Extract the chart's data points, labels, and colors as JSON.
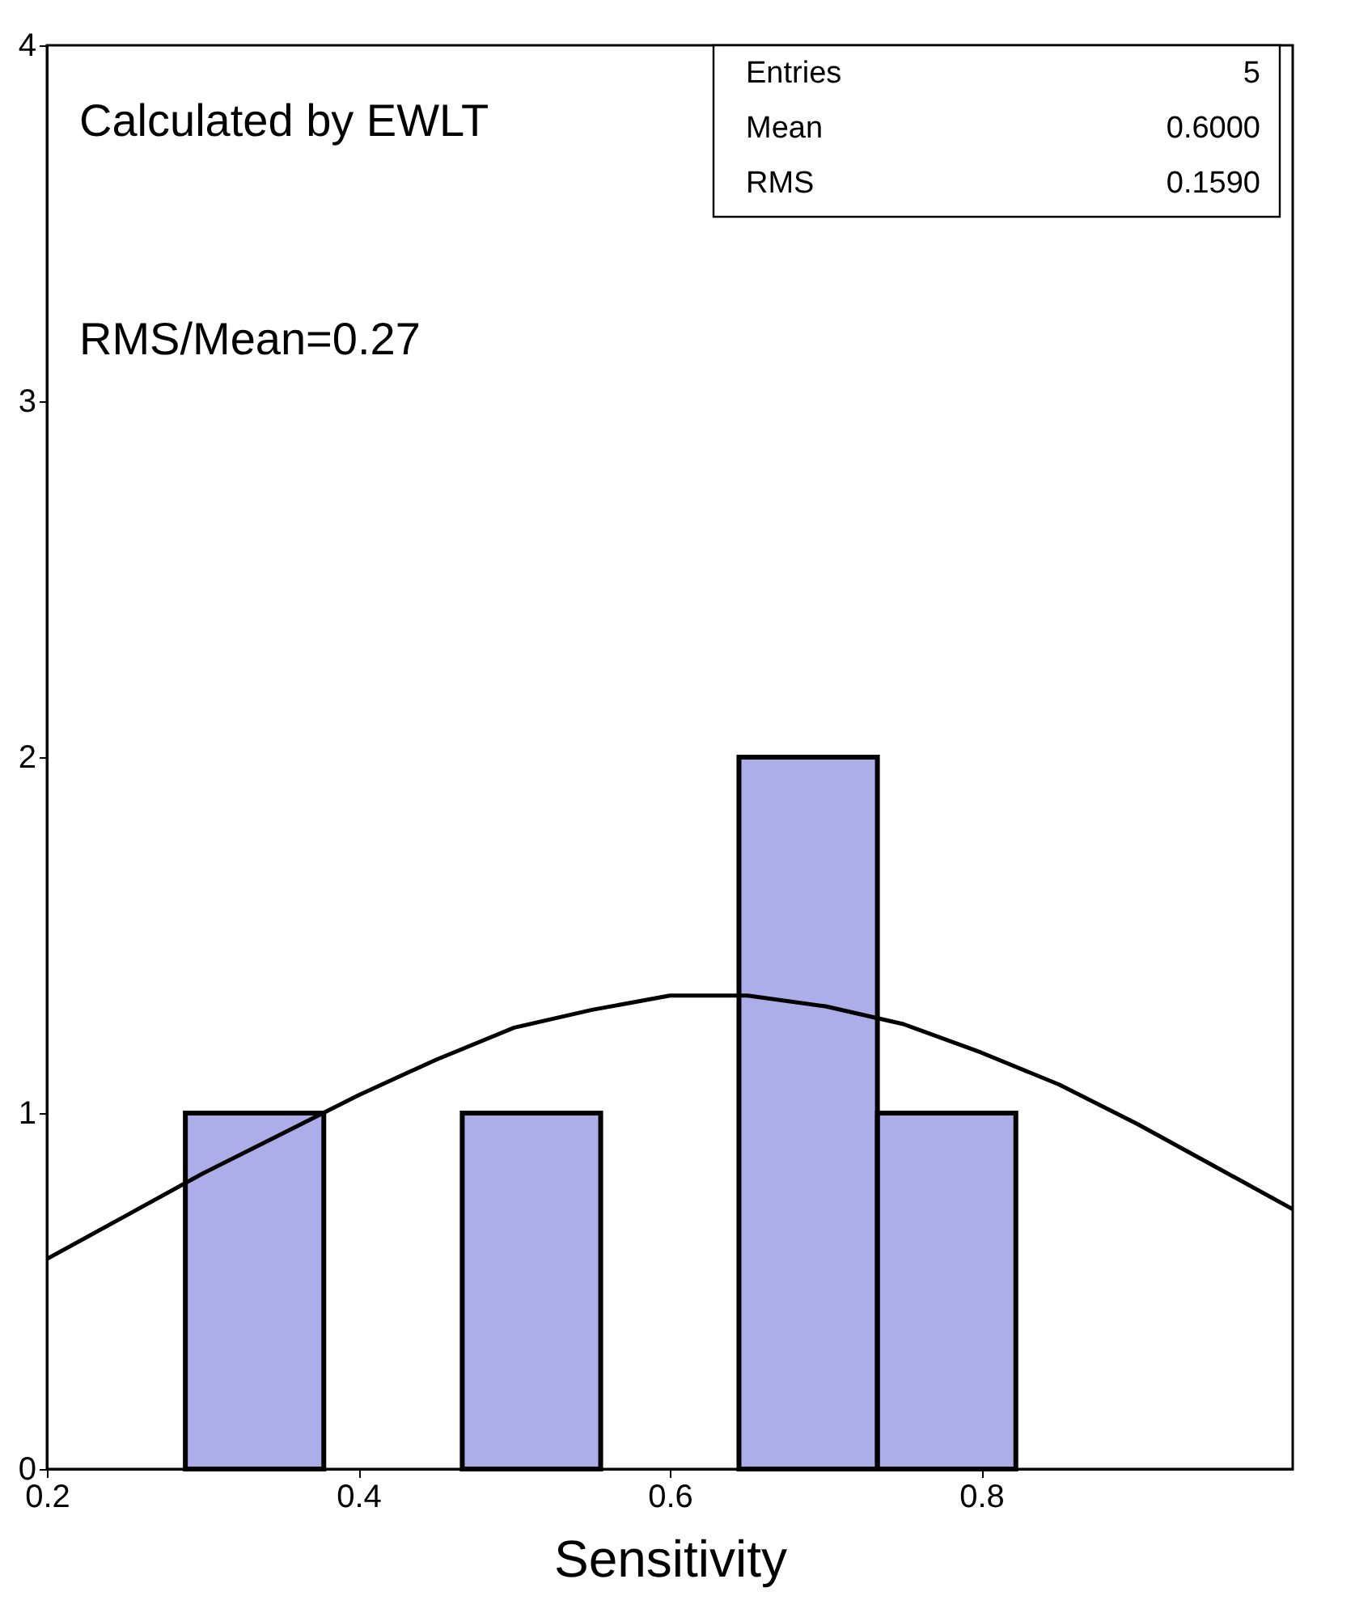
{
  "chart_data": {
    "type": "histogram",
    "xlabel": "Sensitivity",
    "bins": [
      0.2,
      0.2889,
      0.3778,
      0.4667,
      0.5556,
      0.6444,
      0.7333,
      0.8222,
      0.9111,
      1.0
    ],
    "values": [
      0,
      1,
      0,
      1,
      0,
      2,
      1,
      0,
      0
    ],
    "color": "#4a4ad0",
    "series": [
      {
        "type": "line",
        "color": "#000000",
        "x": [
          0.2,
          0.25,
          0.3,
          0.35,
          0.4,
          0.45,
          0.5,
          0.55,
          0.6,
          0.63,
          0.65,
          0.7,
          0.75,
          0.8,
          0.85,
          0.9,
          0.95,
          1.0
        ],
        "values": [
          0.59,
          0.71,
          0.83,
          0.94,
          1.05,
          1.15,
          1.24,
          1.29,
          1.33,
          1.33,
          1.33,
          1.3,
          1.25,
          1.17,
          1.08,
          0.97,
          0.85,
          0.73
        ]
      }
    ],
    "xlim": [
      0.2,
      1.0
    ],
    "xticks": [
      0.2,
      0.4,
      0.6,
      0.8
    ],
    "ylim": [
      0,
      4
    ],
    "yticks": [
      0,
      1,
      2,
      3,
      4
    ],
    "grid": false,
    "annotations": [
      "Calculated by EWLT",
      "RMS/Mean=0.27",
      "Entries",
      "5",
      "Mean",
      "0.6000",
      "RMS",
      "0.1590"
    ]
  }
}
